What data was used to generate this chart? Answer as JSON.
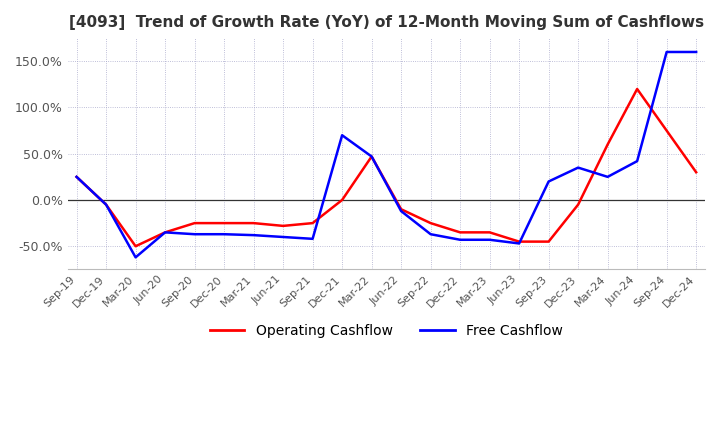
{
  "title": "[4093]  Trend of Growth Rate (YoY) of 12-Month Moving Sum of Cashflows",
  "title_fontsize": 11,
  "title_color": "#333333",
  "ylim": [
    -75,
    175
  ],
  "yticks": [
    -50.0,
    0.0,
    50.0,
    100.0,
    150.0
  ],
  "ytick_labels": [
    "-50.0%",
    "0.0%",
    "50.0%",
    "100.0%",
    "150.0%"
  ],
  "background_color": "#ffffff",
  "grid_color": "#aaaacc",
  "operating_color": "#ff0000",
  "free_color": "#0000ff",
  "x_labels": [
    "Sep-19",
    "Dec-19",
    "Mar-20",
    "Jun-20",
    "Sep-20",
    "Dec-20",
    "Mar-21",
    "Jun-21",
    "Sep-21",
    "Dec-21",
    "Mar-22",
    "Jun-22",
    "Sep-22",
    "Dec-22",
    "Mar-23",
    "Jun-23",
    "Sep-23",
    "Dec-23",
    "Mar-24",
    "Jun-24",
    "Sep-24",
    "Dec-24"
  ],
  "operating_cashflow": [
    25,
    -5,
    -50,
    -35,
    -25,
    -25,
    -25,
    -28,
    -25,
    0,
    47,
    -10,
    -25,
    -35,
    -35,
    -45,
    -45,
    -5,
    60,
    120,
    75,
    30
  ],
  "free_cashflow": [
    25,
    -5,
    -62,
    -35,
    -37,
    -37,
    -38,
    -40,
    -42,
    70,
    47,
    -12,
    -37,
    -43,
    -43,
    -47,
    20,
    35,
    25,
    42,
    160,
    160
  ]
}
